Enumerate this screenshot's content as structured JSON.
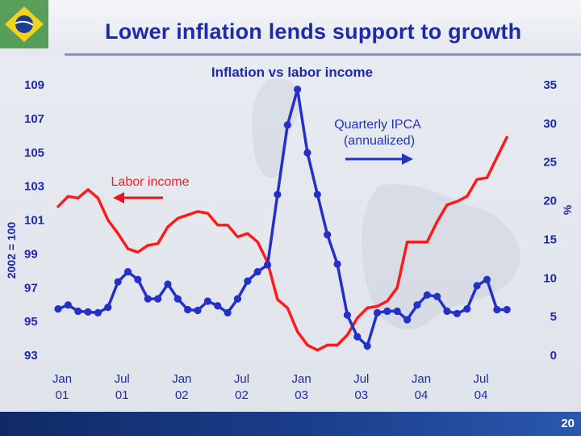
{
  "slide": {
    "title": "Lower inflation lends support to growth",
    "page_number": "20"
  },
  "colors": {
    "title": "#1f2aa8",
    "labor_income": "#ff1a1a",
    "ipca": "#2530c8",
    "arrow_left": "#e8141e",
    "arrow_right": "#2533c4",
    "footer": "#1b3f8c"
  },
  "chart_data": {
    "type": "line",
    "title": "Inflation vs labor income",
    "ylabel_left": "2002 = 100",
    "ylabel_right": "%",
    "ylim_left": [
      93,
      109
    ],
    "ylim_right": [
      0,
      35
    ],
    "yticks_left": [
      "109",
      "107",
      "105",
      "103",
      "101",
      "99",
      "97",
      "95",
      "93"
    ],
    "yticks_right": [
      "35",
      "30",
      "25",
      "20",
      "15",
      "10",
      "5",
      "0"
    ],
    "xticks": [
      {
        "line1": "Jan",
        "line2": "01",
        "month_index": 0
      },
      {
        "line1": "Jul",
        "line2": "01",
        "month_index": 6
      },
      {
        "line1": "Jan",
        "line2": "02",
        "month_index": 12
      },
      {
        "line1": "Jul",
        "line2": "02",
        "month_index": 18
      },
      {
        "line1": "Jan",
        "line2": "03",
        "month_index": 24
      },
      {
        "line1": "Jul",
        "line2": "03",
        "month_index": 30
      },
      {
        "line1": "Jan",
        "line2": "04",
        "month_index": 36
      },
      {
        "line1": "Jul",
        "line2": "04",
        "month_index": 42
      }
    ],
    "grid": false,
    "series": [
      {
        "name": "Labor income",
        "axis": "left",
        "markers": false,
        "month_index": [
          0,
          1,
          2,
          3,
          4,
          5,
          6,
          7,
          8,
          9,
          10,
          11,
          12,
          13,
          14,
          15,
          16,
          17,
          18,
          19,
          20,
          21,
          22,
          23,
          24,
          25,
          26,
          27,
          28,
          29,
          30,
          31,
          32,
          33,
          34,
          35,
          36,
          37,
          38,
          39,
          40,
          41,
          42,
          43,
          44,
          45
        ],
        "values": [
          101.8,
          102.4,
          102.3,
          102.8,
          102.3,
          101.0,
          100.2,
          99.3,
          99.1,
          99.5,
          99.6,
          100.6,
          101.1,
          101.3,
          101.5,
          101.4,
          100.7,
          100.7,
          100.0,
          100.2,
          99.7,
          98.5,
          96.3,
          95.8,
          94.4,
          93.6,
          93.3,
          93.6,
          93.6,
          94.2,
          95.2,
          95.8,
          95.9,
          96.2,
          97.0,
          99.7,
          99.7,
          99.7,
          100.9,
          101.9,
          102.1,
          102.4,
          103.4,
          103.5,
          104.7,
          105.9
        ]
      },
      {
        "name": "Quarterly IPCA (annualized)",
        "axis": "right",
        "markers": true,
        "month_index": [
          0,
          1,
          2,
          3,
          4,
          5,
          6,
          7,
          8,
          9,
          10,
          11,
          12,
          13,
          14,
          15,
          16,
          17,
          18,
          19,
          20,
          21,
          22,
          23,
          24,
          25,
          26,
          27,
          28,
          29,
          30,
          31,
          32,
          33,
          34,
          35,
          36,
          37,
          38,
          39,
          40,
          41,
          42,
          43,
          44,
          45
        ],
        "values": [
          6.0,
          6.5,
          5.7,
          5.6,
          5.5,
          6.2,
          9.5,
          10.8,
          9.8,
          7.3,
          7.3,
          9.2,
          7.3,
          5.9,
          5.8,
          7.0,
          6.4,
          5.5,
          7.3,
          9.6,
          10.8,
          11.7,
          20.8,
          29.8,
          34.4,
          26.2,
          20.8,
          15.6,
          11.8,
          5.2,
          2.4,
          1.2,
          5.5,
          5.7,
          5.7,
          4.6,
          6.5,
          7.8,
          7.6,
          5.7,
          5.4,
          6.0,
          9.0,
          9.8,
          5.9,
          5.9
        ]
      }
    ],
    "annotations": [
      {
        "text": "Labor income",
        "arrow": "left"
      },
      {
        "text_line1": "Quarterly IPCA",
        "text_line2": "(annualized)",
        "arrow": "right"
      }
    ]
  }
}
